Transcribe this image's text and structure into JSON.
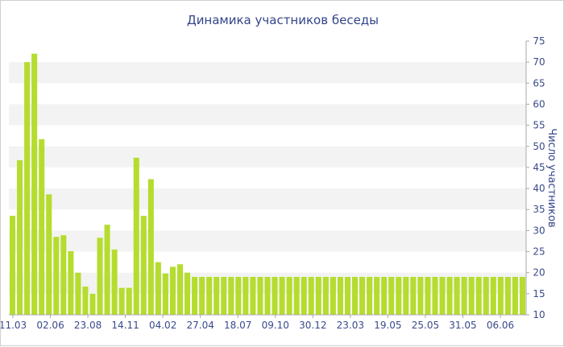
{
  "chart_data": {
    "type": "bar",
    "title": "Динамика участников беседы",
    "ylabel": "Число участников",
    "xlabel": "",
    "ylim": [
      10,
      75
    ],
    "y_ticks": [
      10,
      15,
      20,
      25,
      30,
      35,
      40,
      45,
      50,
      55,
      60,
      65,
      70,
      75
    ],
    "x_tick_labels": [
      "11.03",
      "02.06",
      "23.08",
      "14.11",
      "04.02",
      "27.04",
      "18.07",
      "09.10",
      "30.12",
      "23.03",
      "19.05",
      "25.05",
      "31.05",
      "06.06"
    ],
    "y_axis_side": "right",
    "grid": "alternating horizontal bands",
    "colors": {
      "bar": "#b5dc2e",
      "band": "#f3f3f3",
      "text": "#3a4a8a"
    },
    "values": [
      33.5,
      46.7,
      70,
      72,
      51.7,
      38.6,
      28.5,
      28.9,
      25.1,
      20,
      16.7,
      15,
      28.3,
      31.4,
      25.5,
      16.4,
      16.4,
      47.3,
      33.5,
      42.2,
      22.5,
      19.8,
      21.4,
      22,
      20,
      19,
      19,
      19,
      19,
      19,
      19,
      19,
      19,
      19,
      19,
      19,
      19,
      19,
      19,
      19,
      19,
      19,
      19,
      19,
      19,
      19,
      19,
      19,
      19,
      19,
      19,
      19,
      19,
      19,
      19,
      19,
      19,
      19,
      19,
      19,
      19,
      19,
      19,
      19,
      19,
      19,
      19,
      19,
      19,
      19,
      19
    ]
  }
}
